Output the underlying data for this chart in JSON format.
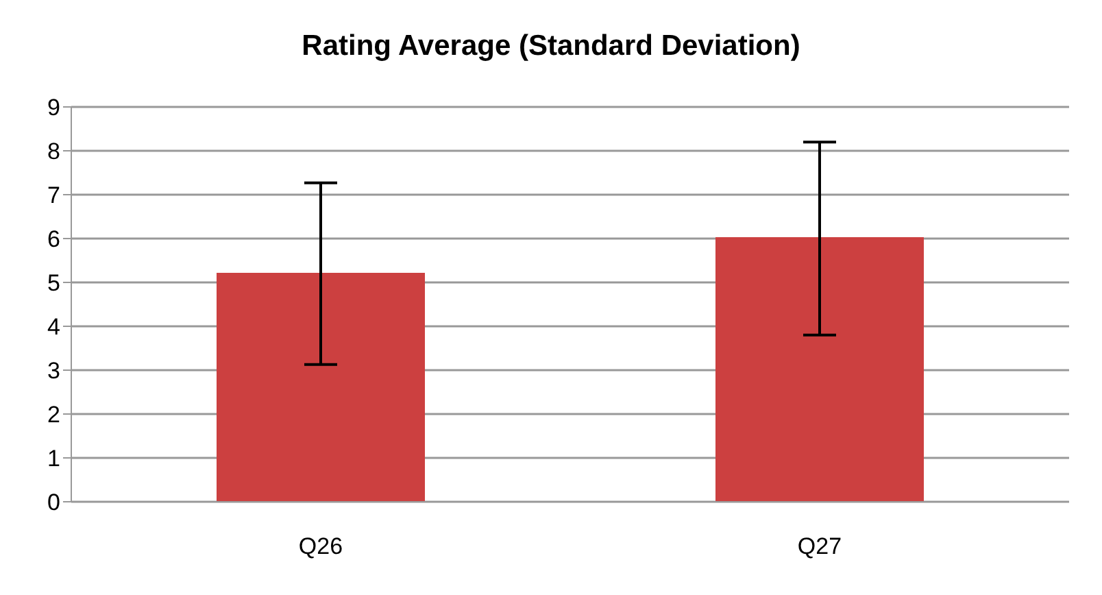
{
  "chart_data": {
    "type": "bar",
    "title": "Rating Average (Standard Deviation)",
    "categories": [
      "Q26",
      "Q27"
    ],
    "values": [
      5.22,
      6.03
    ],
    "color": "#cc4040",
    "errors": [
      [
        3.13,
        7.27
      ],
      [
        3.8,
        8.2
      ]
    ],
    "ylim": [
      0,
      9
    ],
    "yticks": [
      0,
      1,
      2,
      3,
      4,
      5,
      6,
      7,
      8,
      9
    ],
    "grid": "y"
  }
}
